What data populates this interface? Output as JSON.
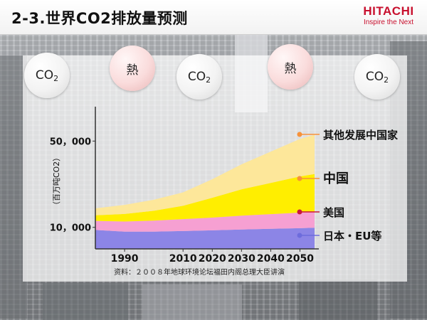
{
  "header": {
    "title": "2-3.世界CO2排放量预测",
    "logo_name": "HITACHI",
    "logo_tagline": "Inspire the Next"
  },
  "bubbles": [
    {
      "text": "CO",
      "sub": "2",
      "kind": "co2"
    },
    {
      "text": "熱",
      "sub": "",
      "kind": "heat"
    },
    {
      "text": "CO",
      "sub": "2",
      "kind": "co2"
    },
    {
      "text": "熱",
      "sub": "",
      "kind": "heat"
    },
    {
      "text": "CO",
      "sub": "2",
      "kind": "co2"
    }
  ],
  "chart_data": {
    "type": "area",
    "stacked": true,
    "x": [
      1980,
      1990,
      2000,
      2010,
      2020,
      2030,
      2040,
      2050,
      2055
    ],
    "x_tick_labels": [
      "1990",
      "2010",
      "2020",
      "2030",
      "2040",
      "2050"
    ],
    "x_ticks": [
      1990,
      2010,
      2020,
      2030,
      2040,
      2050
    ],
    "ylabel": "（百万吨CO2）",
    "y_tick_labels": [
      "10，000",
      "50，000"
    ],
    "y_ticks": [
      10000,
      50000
    ],
    "ylim": [
      0,
      62000
    ],
    "series": [
      {
        "name": "日本・EU等",
        "color": "#8c85e6",
        "values": [
          8800,
          8000,
          8000,
          8300,
          8600,
          9000,
          9300,
          9600,
          9800
        ]
      },
      {
        "name": "美国",
        "color": "#f6a0d2",
        "values": [
          4200,
          4700,
          5100,
          5500,
          5900,
          6400,
          6800,
          7200,
          7400
        ]
      },
      {
        "name": "中国",
        "color": "#ffee00",
        "values": [
          2600,
          3500,
          4600,
          6200,
          9200,
          12200,
          14500,
          16800,
          17500
        ]
      },
      {
        "name": "其他发展中国家",
        "color": "#fde79a",
        "values": [
          3200,
          4200,
          5100,
          6200,
          8600,
          11600,
          14500,
          17400,
          18200
        ]
      }
    ],
    "legend_markers": [
      {
        "series": "其他发展中国家",
        "color": "#f7923a"
      },
      {
        "series": "中国",
        "color": "#f7923a"
      },
      {
        "series": "美国",
        "color": "#c8173c"
      },
      {
        "series": "日本・EU等",
        "color": "#6d6cdc"
      }
    ],
    "source_note": "资料：２００８年地球环境论坛福田内阁总理大臣讲演"
  }
}
